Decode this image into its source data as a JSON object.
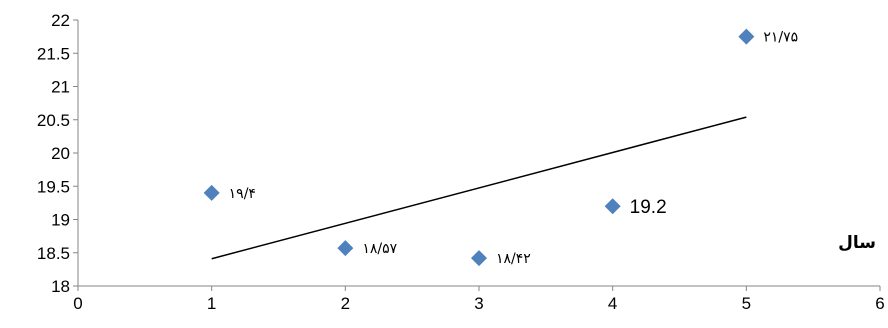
{
  "chart_data": {
    "type": "scatter",
    "title": "",
    "xlabel": "سال",
    "ylabel": "",
    "xlim": [
      0,
      6
    ],
    "ylim": [
      18,
      22
    ],
    "x_ticks": [
      "0",
      "1",
      "2",
      "3",
      "4",
      "5",
      "6"
    ],
    "y_ticks": [
      "18",
      "18.5",
      "19",
      "19.5",
      "20",
      "20.5",
      "21",
      "21.5",
      "22"
    ],
    "grid": false,
    "legend": "none",
    "marker_color": "#4F81BD",
    "trendline_color": "#000000",
    "points": [
      {
        "x": 1,
        "y": 19.4,
        "label": "۱۹/۴"
      },
      {
        "x": 2,
        "y": 18.57,
        "label": "۱۸/۵۷"
      },
      {
        "x": 3,
        "y": 18.42,
        "label": "۱۸/۴۲"
      },
      {
        "x": 4,
        "y": 19.2,
        "label": "19.2"
      },
      {
        "x": 5,
        "y": 21.75,
        "label": "۲۱/۷۵"
      }
    ],
    "trendline": {
      "type": "linear",
      "start": {
        "x": 1,
        "y": 18.41
      },
      "end": {
        "x": 5,
        "y": 20.54
      }
    }
  }
}
